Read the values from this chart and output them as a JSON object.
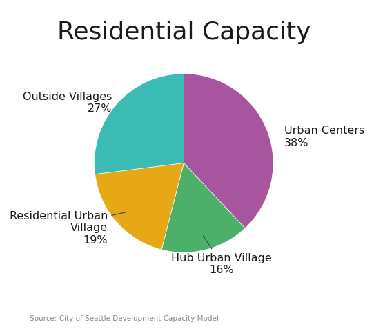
{
  "title": "Residential Capacity",
  "title_fontsize": 26,
  "source_text": "Source: City of Seattle Development Capacity Model",
  "slices": [
    {
      "label": "Urban Centers\n38%",
      "value": 38,
      "color": "#A855A0"
    },
    {
      "label": "Hub Urban Village\n16%",
      "value": 16,
      "color": "#4CAF6A"
    },
    {
      "label": "Residential Urban\nVillage\n19%",
      "value": 19,
      "color": "#E6A817"
    },
    {
      "label": "Outside Villages\n27%",
      "value": 27,
      "color": "#3ABCB5"
    }
  ],
  "startangle": 90,
  "background_color": "#ffffff",
  "text_color": "#1a1a1a",
  "label_fontsize": 11.5,
  "source_fontsize": 7.5,
  "source_color": "#888888"
}
